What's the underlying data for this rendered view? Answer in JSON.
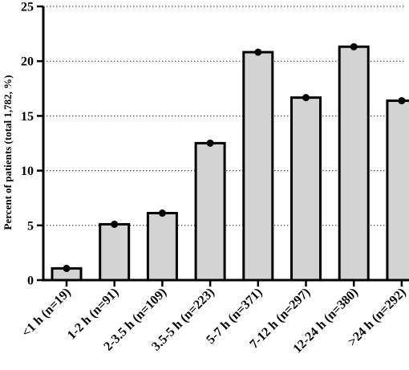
{
  "chart_data": {
    "type": "bar",
    "title": "",
    "xlabel": "",
    "ylabel": "Percent of patients (total  1,782, %)",
    "ylim": [
      0,
      25
    ],
    "yticks": [
      0,
      5,
      10,
      15,
      20,
      25
    ],
    "grid": "horizontal dotted",
    "categories": [
      "<1 h (n=19)",
      "1-2 h (n=91)",
      "2-3.5 h (n=109)",
      "3.5-5 h (n=223)",
      "5-7 h (n=371)",
      "7-12 h (n=297)",
      "12-24 h (n=380)",
      ">24 h (n=292)"
    ],
    "values": [
      1.07,
      5.1,
      6.12,
      12.51,
      20.82,
      16.67,
      21.32,
      16.39
    ],
    "colors": {
      "bar_fill": "#d3d3d3",
      "bar_stroke": "#000000",
      "marker": "#000000",
      "grid": "#333333"
    }
  }
}
